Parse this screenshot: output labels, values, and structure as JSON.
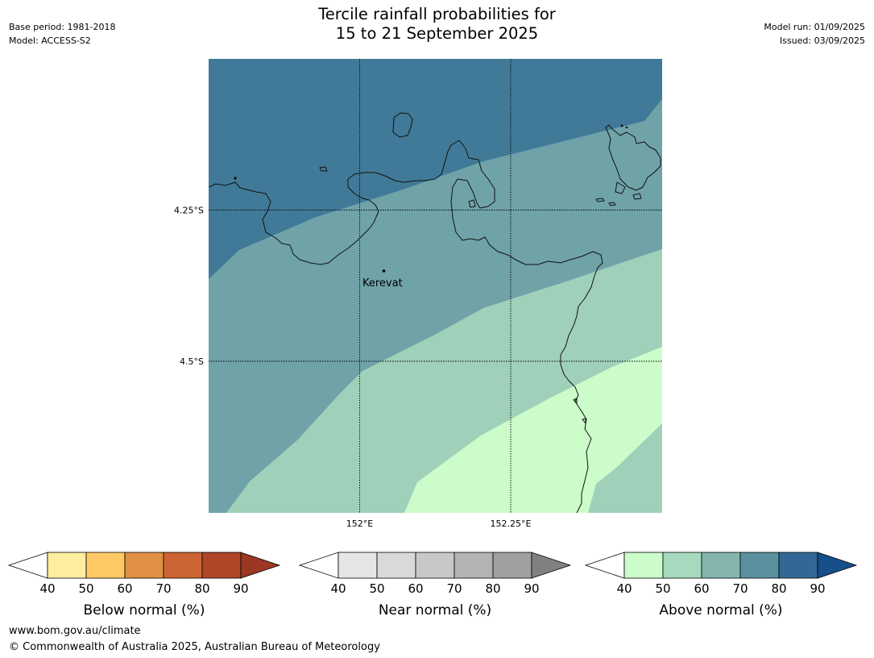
{
  "title": {
    "line1": "Tercile rainfall probabilities for",
    "line2": "15 to 21 September 2025"
  },
  "meta_left": {
    "base_period": "Base period: 1981-2018",
    "model": "Model: ACCESS-S2"
  },
  "meta_right": {
    "model_run": "Model run: 01/09/2025",
    "issued": "Issued: 03/09/2025"
  },
  "map": {
    "lat_labels": [
      "4.25°S",
      "4.5°S"
    ],
    "lon_labels": [
      "152°E",
      "152.25°E"
    ],
    "place": "Kerevat",
    "bands": [
      {
        "name": "above-normal-70-80",
        "color": "#6fa3a8"
      },
      {
        "name": "above-normal-50-60",
        "color": "#9fd1ba"
      },
      {
        "name": "above-normal-40-50",
        "color": "#ccfcca"
      },
      {
        "name": "above-normal-80-90",
        "color": "#417a98"
      }
    ]
  },
  "colorbars": [
    {
      "label": "Below normal (%)",
      "ticks": [
        "40",
        "50",
        "60",
        "70",
        "80",
        "90"
      ],
      "colors": [
        "#ffeda0",
        "#fec965",
        "#e09045",
        "#cd6433",
        "#b04627"
      ],
      "extend_color": "#9a3824"
    },
    {
      "label": "Near normal (%)",
      "ticks": [
        "40",
        "50",
        "60",
        "70",
        "80",
        "90"
      ],
      "colors": [
        "#e6e6e6",
        "#d9d9d9",
        "#c8c8c8",
        "#b3b3b3",
        "#a0a0a0"
      ],
      "extend_color": "#808080"
    },
    {
      "label": "Above normal (%)",
      "ticks": [
        "40",
        "50",
        "60",
        "70",
        "80",
        "90"
      ],
      "colors": [
        "#ccfcca",
        "#a6d9bd",
        "#83b5ad",
        "#5a8f9e",
        "#356796"
      ],
      "extend_color": "#164f8a"
    }
  ],
  "footer": {
    "url": "www.bom.gov.au/climate",
    "copyright": "© Commonwealth of Australia 2025, Australian Bureau of Meteorology"
  }
}
